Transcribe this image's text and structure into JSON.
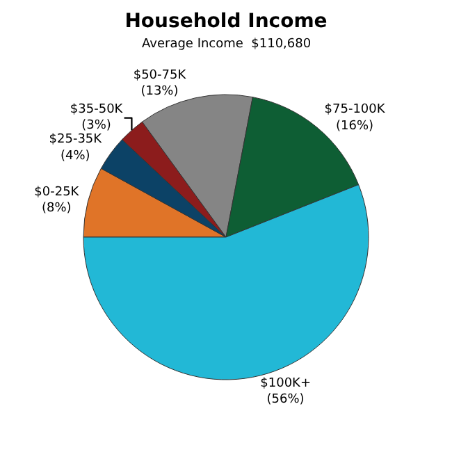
{
  "chart_data": {
    "type": "pie",
    "title": "Household Income",
    "subtitle": "Average Income  $110,680",
    "categories": [
      "$0-25K",
      "$25-35K",
      "$35-50K",
      "$50-75K",
      "$75-100K",
      "$100K+"
    ],
    "values": [
      8,
      4,
      3,
      13,
      16,
      56
    ],
    "value_labels": [
      "(8%)",
      "(4%)",
      "(3%)",
      "(13%)",
      "(16%)",
      "(56%)"
    ],
    "colors": [
      "#e07428",
      "#0c4266",
      "#8c1c1c",
      "#858585",
      "#0e5e34",
      "#22b8d6"
    ],
    "legend": false
  }
}
